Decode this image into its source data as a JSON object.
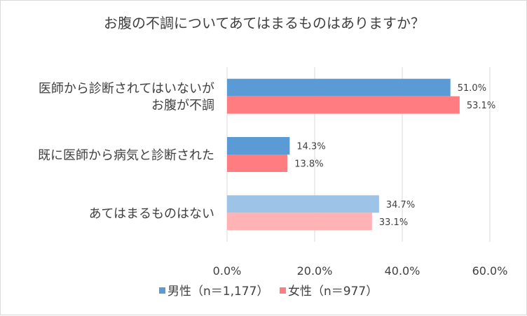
{
  "chart_data": {
    "type": "bar",
    "orientation": "horizontal",
    "title": "お腹の不調についてあてはまるものはありますか？",
    "categories": [
      [
        "医師から診断されてはいないが",
        "お腹が不調"
      ],
      [
        "既に医師から病気と診断された"
      ],
      [
        "あてはまるものはない"
      ]
    ],
    "series": [
      {
        "name": "男性（n＝1,177）",
        "values": [
          51.0,
          14.3,
          34.7
        ],
        "labels": [
          "51.0%",
          "14.3%",
          "34.7%"
        ],
        "colors": [
          "#5b9bd5",
          "#5b9bd5",
          "#9dc3e6"
        ]
      },
      {
        "name": "女性（n＝977）",
        "values": [
          53.1,
          13.8,
          33.1
        ],
        "labels": [
          "53.1%",
          "13.8%",
          "33.1%"
        ],
        "colors": [
          "#ff7c80",
          "#ff7c80",
          "#ffb3b5"
        ]
      }
    ],
    "xlim": [
      0,
      60
    ],
    "xticks": [
      0,
      20,
      40,
      60
    ],
    "xtick_labels": [
      "0.0%",
      "20.0%",
      "40.0%",
      "60.0%"
    ],
    "grid": true,
    "legend_position": "bottom",
    "legend_colors": [
      "#5b9bd5",
      "#ff7c80"
    ]
  }
}
